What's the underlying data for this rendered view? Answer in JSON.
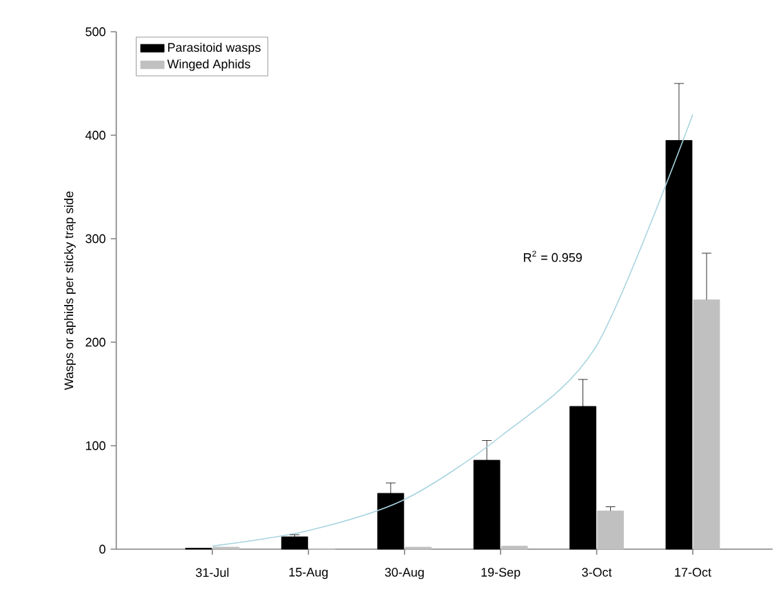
{
  "chart_data": {
    "type": "bar",
    "ylabel": "Wasps or aphids per sticky trap side",
    "categories": [
      "31-Jul",
      "15-Aug",
      "30-Aug",
      "19-Sep",
      "3-Oct",
      "17-Oct"
    ],
    "ylim": [
      0,
      500
    ],
    "yticks": [
      0,
      100,
      200,
      300,
      400,
      500
    ],
    "legend": "top left",
    "series": [
      {
        "name": "Parasitoid wasps",
        "color": "#000000",
        "values": [
          1,
          12,
          54,
          86,
          138,
          395
        ],
        "errors": [
          null,
          [
            12,
            14
          ],
          [
            54,
            64
          ],
          [
            86,
            105
          ],
          [
            138,
            164
          ],
          [
            395,
            450
          ]
        ]
      },
      {
        "name": "Winged Aphids",
        "color": "#c0c0c0",
        "values": [
          2,
          0,
          2,
          3,
          37,
          241
        ],
        "errors": [
          null,
          null,
          null,
          null,
          [
            37,
            41
          ],
          [
            241,
            286
          ]
        ]
      },
      {
        "type": "line",
        "color": "#a8d4e0",
        "values": [
          3,
          18,
          48,
          109,
          197,
          420
        ]
      }
    ],
    "annotations": [
      "R$^{2}$ = 0.959"
    ]
  }
}
